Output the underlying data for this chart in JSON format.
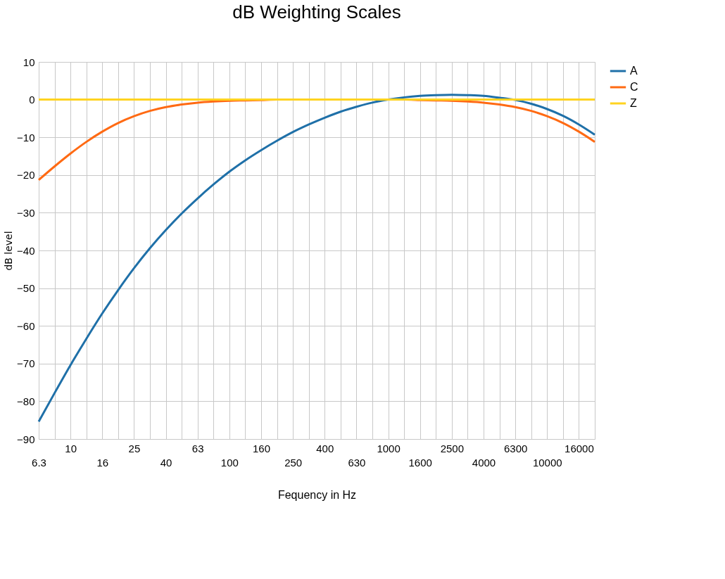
{
  "chart_data": {
    "type": "line",
    "title": "dB Weighting Scales",
    "xlabel": "Fequency in Hz",
    "ylabel": "dB level",
    "categories": [
      "6.3",
      null,
      "10",
      null,
      "16",
      null,
      "25",
      null,
      "40",
      null,
      "63",
      null,
      "100",
      null,
      "160",
      null,
      "250",
      null,
      "400",
      null,
      "630",
      null,
      "1000",
      null,
      "1600",
      null,
      "2500",
      null,
      "4000",
      null,
      "6300",
      null,
      "10000",
      null,
      "16000",
      null
    ],
    "series": [
      {
        "name": "A",
        "color": "#1f70a8",
        "values": [
          -85.4,
          -77.8,
          -70.4,
          -63.4,
          -56.7,
          -50.5,
          -44.7,
          -39.4,
          -34.6,
          -30.2,
          -26.2,
          -22.5,
          -19.1,
          -16.1,
          -13.4,
          -10.9,
          -8.6,
          -6.6,
          -4.8,
          -3.2,
          -1.9,
          -0.8,
          0,
          0.6,
          1.0,
          1.2,
          1.3,
          1.2,
          1.0,
          0.5,
          -0.1,
          -1.1,
          -2.5,
          -4.3,
          -6.6,
          -9.3
        ]
      },
      {
        "name": "C",
        "color": "#ff6a13",
        "values": [
          -21.3,
          -17.7,
          -14.3,
          -11.2,
          -8.5,
          -6.2,
          -4.4,
          -3.0,
          -2.0,
          -1.3,
          -0.8,
          -0.5,
          -0.3,
          -0.2,
          -0.1,
          0,
          0,
          0,
          0,
          0,
          0,
          0,
          0,
          0,
          -0.1,
          -0.2,
          -0.3,
          -0.5,
          -0.8,
          -1.3,
          -2.0,
          -3.0,
          -4.4,
          -6.2,
          -8.5,
          -11.2
        ]
      },
      {
        "name": "Z",
        "color": "#ffd320",
        "values": [
          0,
          0,
          0,
          0,
          0,
          0,
          0,
          0,
          0,
          0,
          0,
          0,
          0,
          0,
          0,
          0,
          0,
          0,
          0,
          0,
          0,
          0,
          0,
          0,
          0,
          0,
          0,
          0,
          0,
          0,
          0,
          0,
          0,
          0,
          0,
          0
        ]
      }
    ],
    "ylim": [
      -90,
      10
    ],
    "yticks": [
      -90,
      -80,
      -70,
      -60,
      -50,
      -40,
      -30,
      -20,
      -10,
      0,
      10
    ],
    "grid": true,
    "legend": "right",
    "marker": "none",
    "line_style": "solid"
  }
}
